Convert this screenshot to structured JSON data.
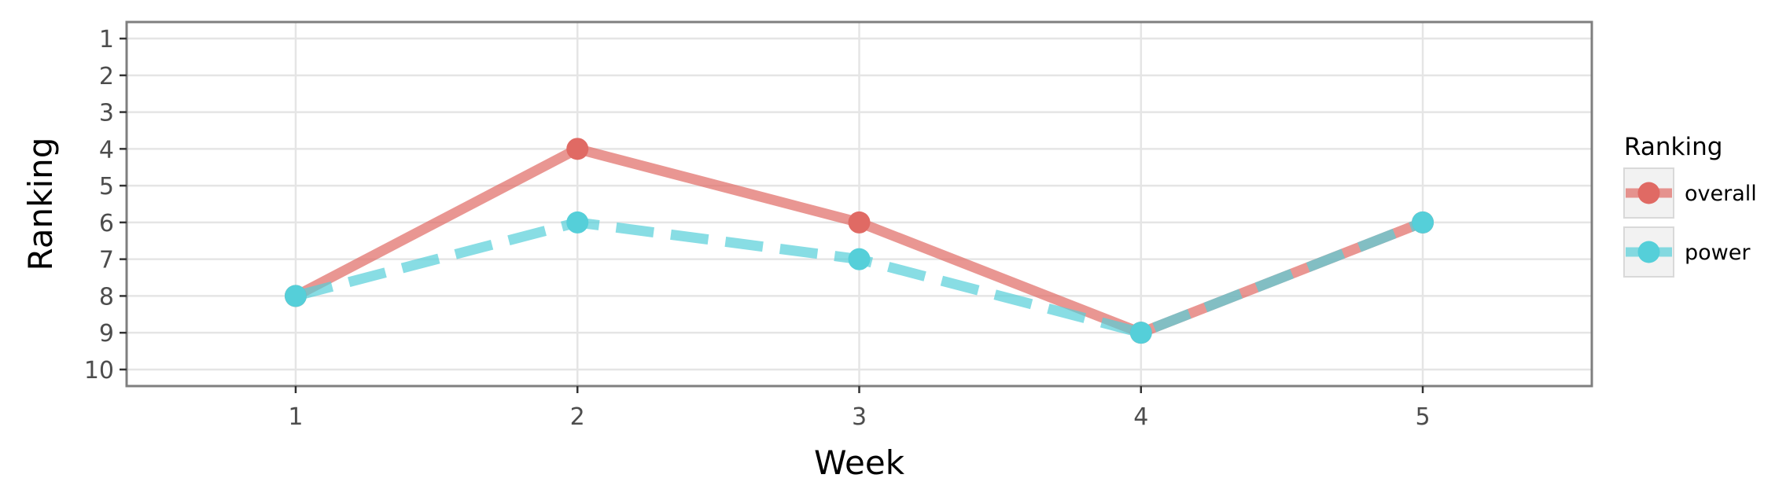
{
  "chart_data": {
    "type": "line",
    "xlabel": "Week",
    "ylabel": "Ranking",
    "x": [
      1,
      2,
      3,
      4,
      5
    ],
    "x_ticks": [
      "1",
      "2",
      "3",
      "4",
      "5"
    ],
    "xlim": [
      0.4,
      5.6
    ],
    "y_ticks": [
      "1",
      "2",
      "3",
      "4",
      "5",
      "6",
      "7",
      "8",
      "9",
      "10"
    ],
    "ylim": [
      10.45,
      0.55
    ],
    "y_reversed": true,
    "grid": true,
    "legend": {
      "title": "Ranking",
      "position": "right"
    },
    "series": [
      {
        "name": "overall",
        "values": [
          8,
          4,
          6,
          9,
          6
        ],
        "color": "#e06a64",
        "line_style": "solid"
      },
      {
        "name": "power",
        "values": [
          8,
          6,
          7,
          9,
          6
        ],
        "color": "#55cfd9",
        "line_style": "dashed"
      }
    ]
  }
}
